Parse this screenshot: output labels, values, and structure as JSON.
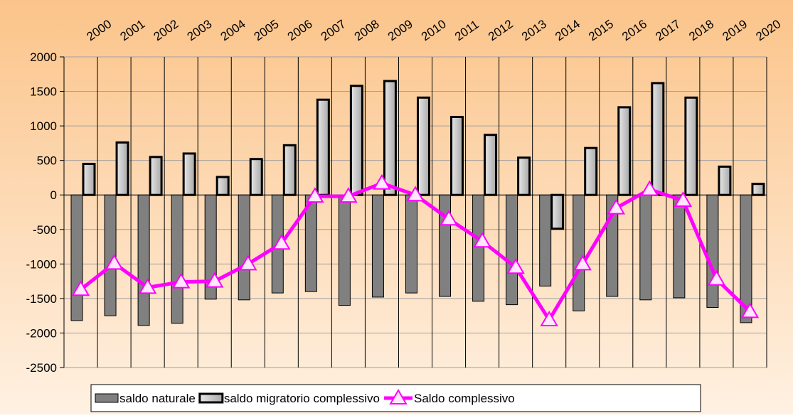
{
  "chart_data": {
    "type": "bar_line",
    "categories": [
      "2000",
      "2001",
      "2002",
      "2003",
      "2004",
      "2005",
      "2006",
      "2007",
      "2008",
      "2009",
      "2010",
      "2011",
      "2012",
      "2013",
      "2014",
      "2015",
      "2016",
      "2017",
      "2018",
      "2019",
      "2020"
    ],
    "series": [
      {
        "name": "saldo naturale",
        "type": "bar",
        "color": "#808080",
        "values": [
          -1820,
          -1750,
          -1890,
          -1860,
          -1510,
          -1520,
          -1420,
          -1400,
          -1600,
          -1480,
          -1420,
          -1470,
          -1540,
          -1590,
          -1320,
          -1680,
          -1470,
          -1520,
          -1490,
          -1630,
          -1850
        ]
      },
      {
        "name": "saldo migratorio complessivo",
        "type": "bar",
        "color": "#c8c8c8",
        "values": [
          450,
          760,
          550,
          600,
          260,
          520,
          720,
          1380,
          1580,
          1650,
          1410,
          1130,
          870,
          540,
          -490,
          680,
          1270,
          1620,
          1410,
          410,
          160
        ]
      },
      {
        "name": "Saldo complessivo",
        "type": "line",
        "color": "#ff00ff",
        "values": [
          -1370,
          -990,
          -1340,
          -1260,
          -1250,
          -1000,
          -700,
          -20,
          -20,
          170,
          0,
          -350,
          -670,
          -1050,
          -1810,
          -1000,
          -190,
          80,
          -80,
          -1220,
          -1690
        ]
      }
    ],
    "ylim": [
      -2500,
      2000
    ],
    "yticks": [
      -2500,
      -2000,
      -1500,
      -1000,
      -500,
      0,
      500,
      1000,
      1500,
      2000
    ],
    "grid": true,
    "legend": "bottom"
  }
}
